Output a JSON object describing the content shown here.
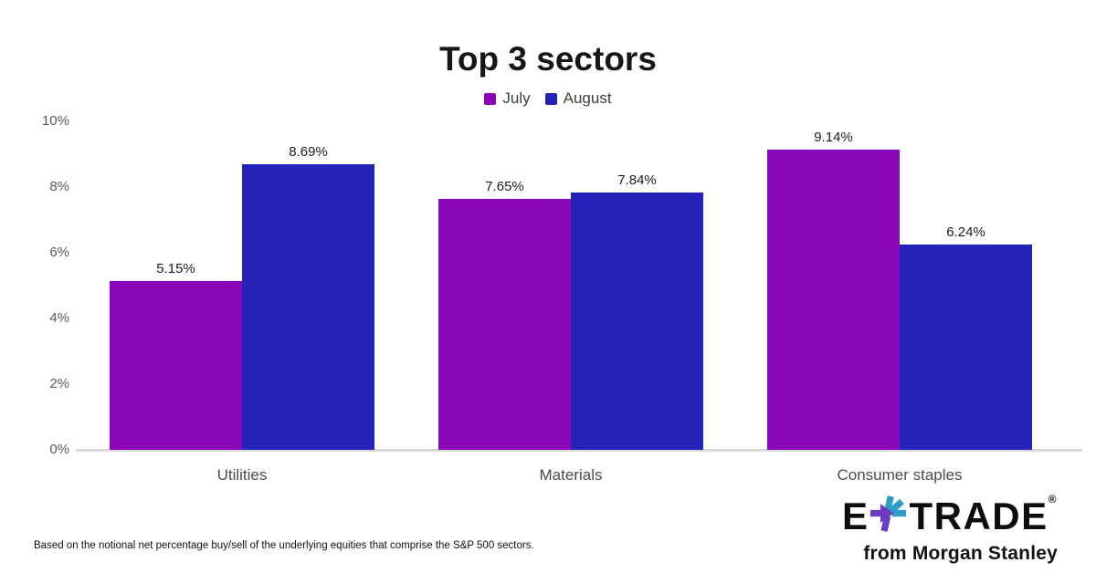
{
  "chart_data": {
    "type": "bar",
    "title": "Top 3 sectors",
    "categories": [
      "Utilities",
      "Materials",
      "Consumer staples"
    ],
    "series": [
      {
        "name": "July",
        "color": "#8A08B8",
        "values": [
          5.15,
          7.65,
          9.14
        ]
      },
      {
        "name": "August",
        "color": "#2422B9",
        "values": [
          8.69,
          7.84,
          6.24
        ]
      }
    ],
    "value_labels": [
      [
        "5.15%",
        "7.65%",
        "9.14%"
      ],
      [
        "8.69%",
        "7.84%",
        "6.24%"
      ]
    ],
    "xlabel": "",
    "ylabel": "",
    "ylim": [
      0,
      10
    ],
    "yticks": [
      0,
      2,
      4,
      6,
      8,
      10
    ],
    "ytick_suffix": "%",
    "grid": false,
    "legend_position": "top-center",
    "axis_line_color": "#d9d9d9"
  },
  "footnote": "Based on the notional net percentage buy/sell of the underlying equities that comprise the S&P 500 sectors.",
  "logo": {
    "brand_left": "E",
    "brand_right": "TRADE",
    "registered_mark": "®",
    "tagline": "from Morgan Stanley",
    "asterisk_purple": "#6B3BC2",
    "asterisk_teal": "#2E9EC9"
  }
}
